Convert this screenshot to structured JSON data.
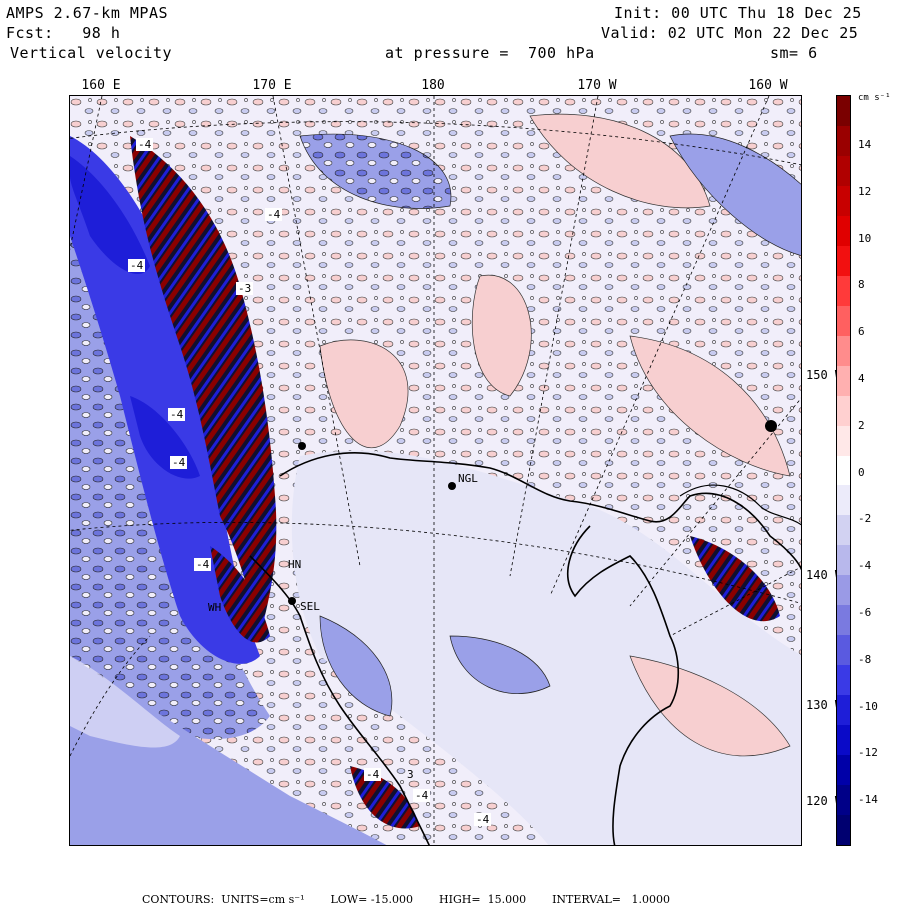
{
  "header": {
    "model": "AMPS 2.67-km MPAS",
    "init": "Init: 00 UTC Thu 18 Dec 25",
    "forecast": "Fcst:   98 h",
    "valid": "Valid: 02 UTC Mon 22 Dec 25",
    "field": "Vertical velocity",
    "level": "at pressure =  700 hPa",
    "smoothing": "sm= 6"
  },
  "longitude_labels": [
    "160 E",
    "170 E",
    "180",
    "170 W",
    "160 W"
  ],
  "latitude_labels": [
    "150 W",
    "140 W",
    "130 W",
    "120 W"
  ],
  "stations": [
    "NGL",
    "SEL",
    "HN",
    "WH"
  ],
  "contour_marks": [
    "-4",
    "-4",
    "-4",
    "-3",
    "-4",
    "-4",
    "-4",
    "-4",
    "-4",
    "-4",
    "3"
  ],
  "colorbar": {
    "unit": "cm s⁻¹",
    "tick_labels": [
      "14",
      "12",
      "10",
      "8",
      "6",
      "4",
      "2",
      "0",
      "-2",
      "-4",
      "-6",
      "-8",
      "-10",
      "-12",
      "-14"
    ],
    "colors": [
      "#7a0000",
      "#9a0000",
      "#b00000",
      "#c80000",
      "#e00000",
      "#f21010",
      "#ff3a3a",
      "#ff6060",
      "#ff8c8c",
      "#ffb0b0",
      "#ffd0d0",
      "#ffe8e8",
      "#ffffff",
      "#ecebfa",
      "#d2d2f2",
      "#b8b8ec",
      "#9a9ae6",
      "#7a7ae0",
      "#5a5ae0",
      "#3a3ae6",
      "#1e1ed8",
      "#0a0ac8",
      "#0000a8",
      "#000088",
      "#000070"
    ]
  },
  "footer": {
    "contours": "CONTOURS:  UNITS=cm s⁻¹",
    "low": "LOW= -15.000",
    "high": "HIGH=  15.000",
    "interval": "INTERVAL=   1.0000"
  },
  "map_colors": {
    "background": "#f1eefa",
    "positive_light": "#f7cfd0",
    "negative_light": "#9aa0e8",
    "negative_mid": "#5a63d8",
    "negative_dark": "#1e1ed8",
    "positive_dark": "#8a0000"
  }
}
